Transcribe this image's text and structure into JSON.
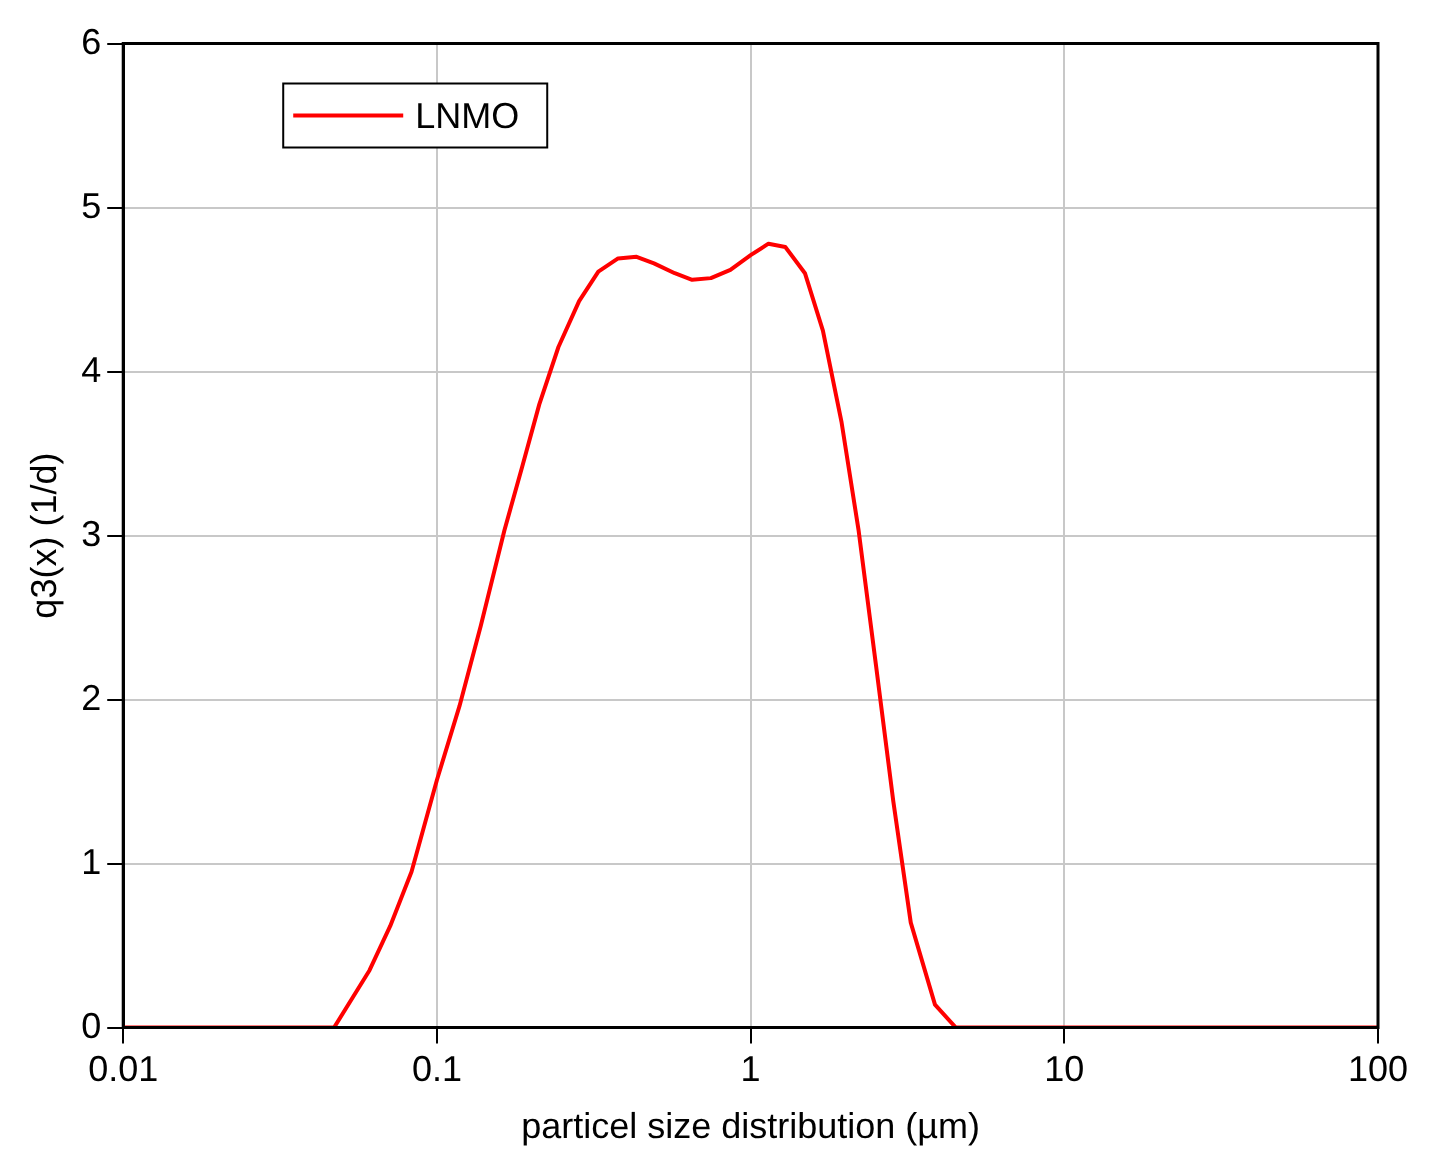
{
  "chart_data": {
    "type": "line",
    "xlabel": "particel size distribution (µm)",
    "ylabel": "q3(x) (1/d)",
    "log": "x",
    "xlim": [
      0.01,
      100
    ],
    "xticks": [
      0.01,
      0.1,
      1,
      10,
      100
    ],
    "ylim": [
      0,
      6
    ],
    "yticks": [
      0,
      1,
      2,
      3,
      4,
      5,
      6
    ],
    "grid": true,
    "legend": "top left",
    "marker": "none",
    "line_style": "solid",
    "series": [
      {
        "name": "LNMO",
        "color": "#ff0000",
        "x": [
          0.01,
          0.047,
          0.061,
          0.071,
          0.083,
          0.1,
          0.118,
          0.138,
          0.164,
          0.187,
          0.212,
          0.244,
          0.284,
          0.327,
          0.378,
          0.433,
          0.492,
          0.573,
          0.651,
          0.747,
          0.862,
          1.0,
          1.14,
          1.29,
          1.49,
          1.7,
          1.95,
          2.21,
          2.51,
          2.85,
          3.24,
          3.87,
          4.51,
          100
        ],
        "values": [
          0,
          0,
          0.35,
          0.62,
          0.95,
          1.51,
          1.96,
          2.45,
          3.03,
          3.42,
          3.8,
          4.15,
          4.43,
          4.61,
          4.69,
          4.7,
          4.66,
          4.6,
          4.56,
          4.57,
          4.62,
          4.71,
          4.78,
          4.76,
          4.6,
          4.25,
          3.69,
          3.03,
          2.21,
          1.38,
          0.64,
          0.14,
          0,
          0
        ]
      }
    ]
  }
}
